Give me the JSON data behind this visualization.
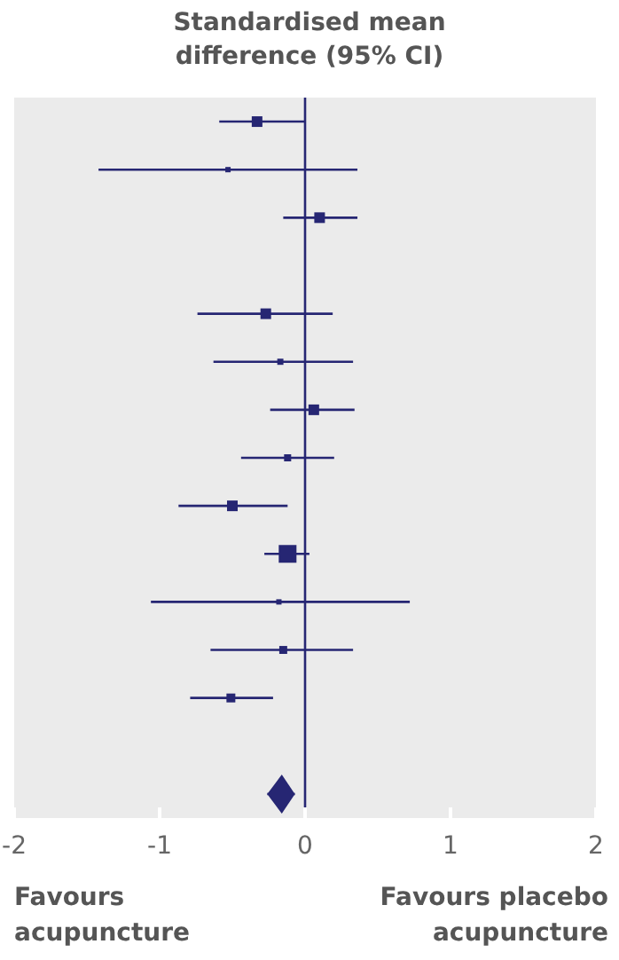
{
  "chart_data": {
    "type": "scatter",
    "title": "Standardised mean difference (95% CI)",
    "orientation": "horizontal",
    "categories": [
      null,
      null,
      null,
      null,
      null,
      null,
      null,
      null,
      null,
      null,
      null,
      null,
      null,
      null,
      null
    ],
    "xlim": [
      -2,
      2
    ],
    "xticks": [
      -2,
      -1,
      0,
      1,
      2
    ],
    "ref_lines": [
      {
        "axis": "x",
        "value": 0,
        "color": "#262673"
      }
    ],
    "annotations": [
      "Favours acupuncture",
      "Favours placebo acupuncture"
    ],
    "series": [
      {
        "type": "bubble",
        "color": "#262673",
        "marker": "square",
        "values": [
          -0.33,
          -0.53,
          0.1,
          null,
          -0.27,
          -0.17,
          0.06,
          -0.12,
          -0.5,
          -0.12,
          -0.18,
          -0.15,
          -0.51,
          null,
          null
        ],
        "errors": [
          [
            -0.59,
            0.0
          ],
          [
            -1.42,
            0.36
          ],
          [
            -0.15,
            0.36
          ],
          null,
          [
            -0.74,
            0.19
          ],
          [
            -0.63,
            0.33
          ],
          [
            -0.24,
            0.34
          ],
          [
            -0.44,
            0.2
          ],
          [
            -0.87,
            -0.12
          ],
          [
            -0.28,
            0.03
          ],
          [
            -1.06,
            0.72
          ],
          [
            -0.65,
            0.33
          ],
          [
            -0.79,
            -0.22
          ],
          null,
          null
        ],
        "sizes": [
          0.36,
          0.09,
          0.36,
          null,
          0.36,
          0.12,
          0.36,
          0.16,
          0.36,
          1,
          0.09,
          0.2,
          0.25,
          null,
          null
        ]
      },
      {
        "type": "scatter",
        "color": "#262673",
        "marker": "diamond",
        "values": [
          null,
          null,
          null,
          null,
          null,
          null,
          null,
          null,
          null,
          null,
          null,
          null,
          null,
          null,
          -0.16
        ],
        "errors": [
          null,
          null,
          null,
          null,
          null,
          null,
          null,
          null,
          null,
          null,
          null,
          null,
          null,
          null,
          [
            -0.26,
            -0.07
          ]
        ]
      }
    ]
  }
}
